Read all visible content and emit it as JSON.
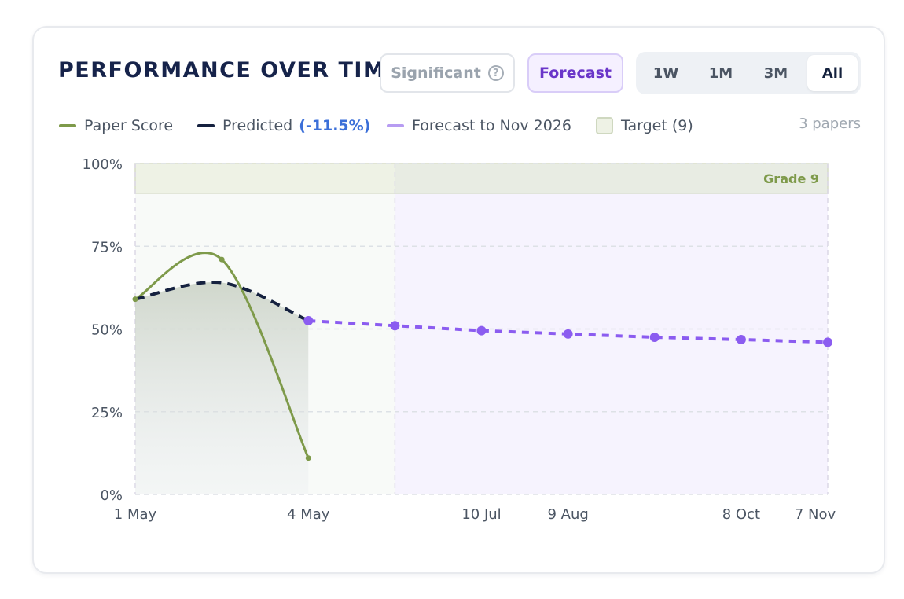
{
  "header": {
    "title": "PERFORMANCE OVER TIME",
    "significant_label": "Significant",
    "help_glyph": "?",
    "forecast_label": "Forecast",
    "ranges": [
      {
        "label": "1W",
        "active": false
      },
      {
        "label": "1M",
        "active": false
      },
      {
        "label": "3M",
        "active": false
      },
      {
        "label": "All",
        "active": true
      }
    ]
  },
  "legend": {
    "paper_score": "Paper Score",
    "predicted": "Predicted",
    "predicted_change": "(-11.5%)",
    "forecast": "Forecast to Nov 2026",
    "target": "Target (9)",
    "papers_count": "3 papers"
  },
  "colors": {
    "paper_score": "#7e9a4a",
    "predicted": "#15213f",
    "forecast": "#8b5cf0",
    "forecast_legend": "#b79cf2",
    "target_band": "#eef2e5",
    "grade_label": "#7e9a4a"
  },
  "chart_data": {
    "type": "line",
    "yaxis": {
      "min": 0,
      "max": 100,
      "ticks": [
        "0%",
        "25%",
        "50%",
        "75%",
        "100%"
      ],
      "tick_values": [
        0,
        25,
        50,
        75,
        100
      ]
    },
    "xaxis": {
      "tick_labels": [
        "1 May",
        "4 May",
        "10 Jul",
        "9 Aug",
        "8 Oct",
        "7 Nov"
      ],
      "tick_indices": [
        0,
        2,
        4,
        5,
        7,
        8
      ]
    },
    "target_band": {
      "label": "Grade 9",
      "from": 91,
      "to": 100
    },
    "series": [
      {
        "name": "Paper Score",
        "points": [
          {
            "i": 0,
            "y": 59
          },
          {
            "i": 1,
            "y": 71
          },
          {
            "i": 2,
            "y": 11
          }
        ]
      },
      {
        "name": "Predicted",
        "points": [
          {
            "i": 0,
            "y": 59
          },
          {
            "i": 1,
            "y": 64
          },
          {
            "i": 2,
            "y": 52.5
          }
        ]
      },
      {
        "name": "Forecast to Nov 2026",
        "points": [
          {
            "i": 2,
            "y": 52.5
          },
          {
            "i": 3,
            "y": 51
          },
          {
            "i": 4,
            "y": 49.5
          },
          {
            "i": 5,
            "y": 48.5
          },
          {
            "i": 6,
            "y": 47.5
          },
          {
            "i": 7,
            "y": 46.8
          },
          {
            "i": 8,
            "y": 46
          }
        ]
      }
    ]
  }
}
